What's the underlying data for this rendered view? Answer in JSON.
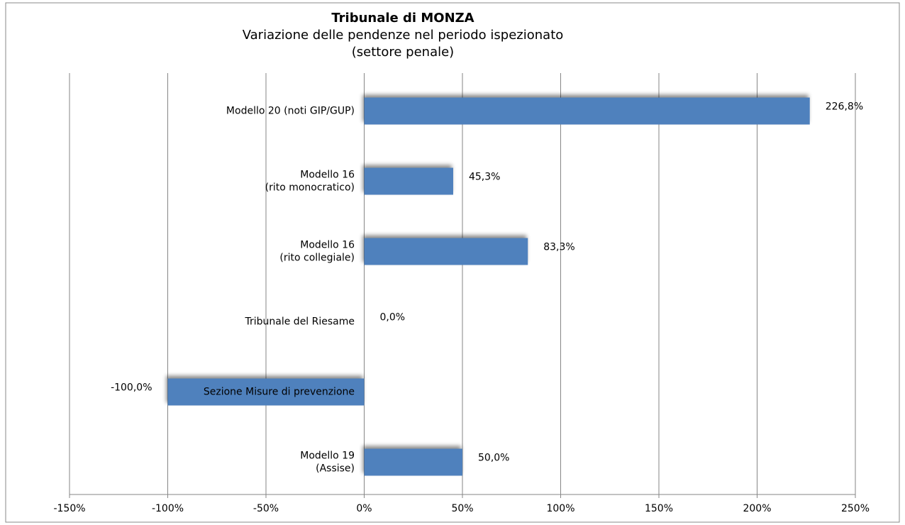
{
  "chart_data": {
    "type": "barh",
    "title": "Tribunale di MONZA",
    "subtitle": [
      "Variazione delle pendenze nel periodo ispezionato",
      "(settore penale)"
    ],
    "categories": [
      [
        "Modello 20 (noti GIP/GUP)"
      ],
      [
        "Modello 16",
        "(rito monocratico)"
      ],
      [
        "Modello 16",
        "(rito collegiale)"
      ],
      [
        "Tribunale del Riesame"
      ],
      [
        "Sezione Misure di prevenzione"
      ],
      [
        "Modello 19",
        "(Assise)"
      ]
    ],
    "values": [
      226.8,
      45.3,
      83.3,
      0,
      -100,
      50
    ],
    "value_labels": [
      "226,8%",
      "45,3%",
      "83,3%",
      "0,0%",
      "-100,0%",
      "50,0%"
    ],
    "color": "#4f81bd",
    "xlim": [
      -150,
      250
    ],
    "xticks": [
      {
        "value": -150,
        "label": "-150%"
      },
      {
        "value": -100,
        "label": "-100%"
      },
      {
        "value": -50,
        "label": "-50%"
      },
      {
        "value": 0,
        "label": "0%"
      },
      {
        "value": 50,
        "label": "50%"
      },
      {
        "value": 100,
        "label": "100%"
      },
      {
        "value": 150,
        "label": "150%"
      },
      {
        "value": 200,
        "label": "200%"
      },
      {
        "value": 250,
        "label": "250%"
      }
    ],
    "grid": true
  }
}
